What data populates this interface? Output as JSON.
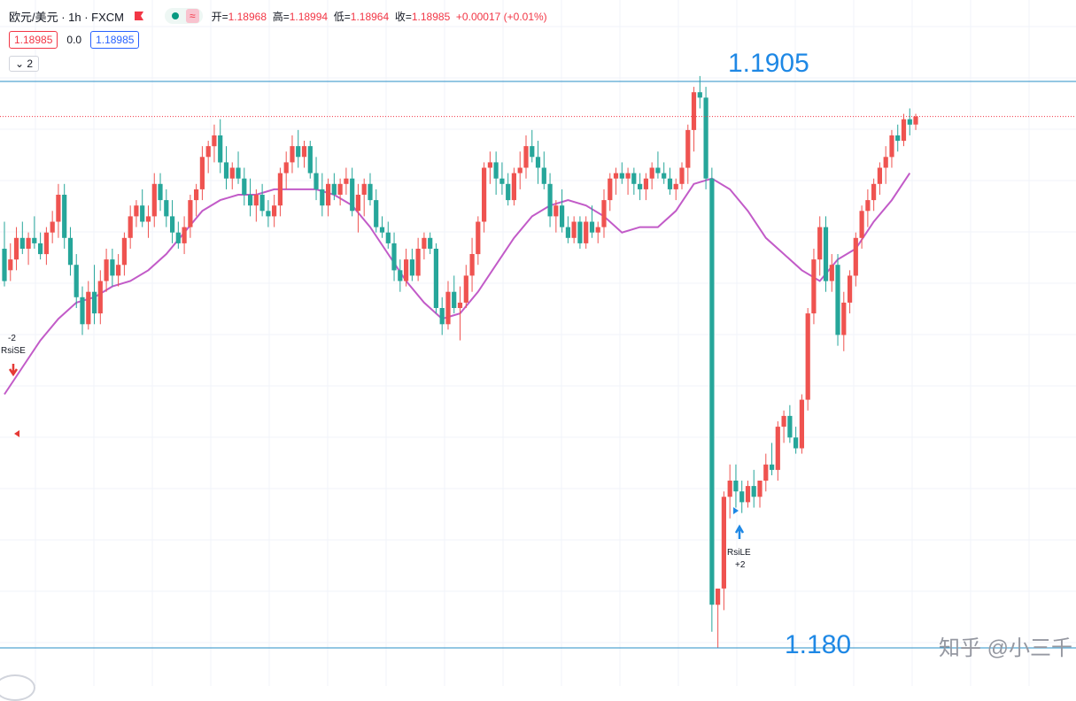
{
  "header": {
    "symbol": "欧元/美元 · 1h · FXCM",
    "open_label": "开=",
    "open": "1.18968",
    "high_label": "高=",
    "high": "1.18994",
    "low_label": "低=",
    "low": "1.18964",
    "close_label": "收=",
    "close": "1.18985",
    "change": "+0.00017 (+0.01%)"
  },
  "prices": {
    "bid": "1.18985",
    "spread": "0.0",
    "ask": "1.18985"
  },
  "indicator_toggle": "2",
  "levels": {
    "upper": "1.1905",
    "lower": "1.180"
  },
  "signals": {
    "short_qty": "-2",
    "short_label": "RsiSE",
    "long_label": "RsiLE",
    "long_qty": "+2"
  },
  "watermark": "知乎 @小三千",
  "colors": {
    "up": "#ef5350",
    "down": "#26a69a",
    "ma": "#c25bc8",
    "level_line": "#2a8fc7",
    "level_text": "#1e88e5"
  },
  "chart_data": {
    "type": "candlestick",
    "symbol": "EURUSD",
    "timeframe": "1h",
    "ylim": [
      1.1795,
      1.1914
    ],
    "horizontal_lines": [
      1.1905,
      1.18
    ],
    "current_price": 1.18985,
    "candles": [
      [
        1.1874,
        1.1879,
        1.1867,
        1.1868
      ],
      [
        1.187,
        1.1875,
        1.1868,
        1.1872
      ],
      [
        1.1872,
        1.1878,
        1.187,
        1.1876
      ],
      [
        1.1876,
        1.1879,
        1.1873,
        1.1874
      ],
      [
        1.1874,
        1.1877,
        1.1871,
        1.1876
      ],
      [
        1.1876,
        1.188,
        1.1874,
        1.1875
      ],
      [
        1.1875,
        1.1877,
        1.1872,
        1.1873
      ],
      [
        1.1873,
        1.1878,
        1.1871,
        1.1877
      ],
      [
        1.1877,
        1.1881,
        1.1875,
        1.1879
      ],
      [
        1.1879,
        1.1886,
        1.1876,
        1.1884
      ],
      [
        1.1884,
        1.1886,
        1.1874,
        1.1876
      ],
      [
        1.1876,
        1.1878,
        1.1869,
        1.1871
      ],
      [
        1.1871,
        1.1873,
        1.1863,
        1.1865
      ],
      [
        1.1865,
        1.1867,
        1.1858,
        1.186
      ],
      [
        1.186,
        1.1868,
        1.1859,
        1.1866
      ],
      [
        1.1866,
        1.1871,
        1.186,
        1.1862
      ],
      [
        1.1862,
        1.187,
        1.186,
        1.1868
      ],
      [
        1.1868,
        1.1874,
        1.1866,
        1.1872
      ],
      [
        1.1872,
        1.1874,
        1.1867,
        1.1869
      ],
      [
        1.1869,
        1.1873,
        1.1867,
        1.1871
      ],
      [
        1.1871,
        1.1877,
        1.1869,
        1.1876
      ],
      [
        1.1876,
        1.1882,
        1.1874,
        1.188
      ],
      [
        1.188,
        1.1883,
        1.1878,
        1.1882
      ],
      [
        1.1882,
        1.1885,
        1.1878,
        1.1879
      ],
      [
        1.1879,
        1.1882,
        1.1876,
        1.188
      ],
      [
        1.188,
        1.1888,
        1.1878,
        1.1886
      ],
      [
        1.1886,
        1.1888,
        1.1881,
        1.1883
      ],
      [
        1.1883,
        1.1885,
        1.1878,
        1.188
      ],
      [
        1.188,
        1.1883,
        1.1875,
        1.1877
      ],
      [
        1.1877,
        1.1879,
        1.1874,
        1.1875
      ],
      [
        1.1875,
        1.188,
        1.1873,
        1.1878
      ],
      [
        1.1878,
        1.1884,
        1.1876,
        1.1883
      ],
      [
        1.1883,
        1.1886,
        1.188,
        1.1885
      ],
      [
        1.1885,
        1.1893,
        1.1883,
        1.1891
      ],
      [
        1.1891,
        1.1894,
        1.1888,
        1.1893
      ],
      [
        1.1893,
        1.1897,
        1.189,
        1.1895
      ],
      [
        1.1895,
        1.1898,
        1.1888,
        1.189
      ],
      [
        1.189,
        1.1893,
        1.1885,
        1.1887
      ],
      [
        1.1887,
        1.189,
        1.1885,
        1.1889
      ],
      [
        1.1889,
        1.1892,
        1.1886,
        1.1887
      ],
      [
        1.1887,
        1.1889,
        1.1882,
        1.1884
      ],
      [
        1.1884,
        1.1887,
        1.188,
        1.1882
      ],
      [
        1.1882,
        1.1885,
        1.1879,
        1.1884
      ],
      [
        1.1884,
        1.1886,
        1.188,
        1.1881
      ],
      [
        1.1881,
        1.1883,
        1.1878,
        1.188
      ],
      [
        1.188,
        1.1884,
        1.1878,
        1.1882
      ],
      [
        1.1882,
        1.1889,
        1.188,
        1.1888
      ],
      [
        1.1888,
        1.1892,
        1.1885,
        1.189
      ],
      [
        1.189,
        1.1895,
        1.1888,
        1.1893
      ],
      [
        1.1893,
        1.1896,
        1.1889,
        1.1891
      ],
      [
        1.1891,
        1.1894,
        1.1889,
        1.1893
      ],
      [
        1.1893,
        1.1894,
        1.1887,
        1.1888
      ],
      [
        1.1888,
        1.1891,
        1.1883,
        1.1885
      ],
      [
        1.1885,
        1.1888,
        1.188,
        1.1882
      ],
      [
        1.1882,
        1.1887,
        1.188,
        1.1886
      ],
      [
        1.1886,
        1.1888,
        1.1883,
        1.1884
      ],
      [
        1.1884,
        1.1887,
        1.1882,
        1.1886
      ],
      [
        1.1886,
        1.1889,
        1.1884,
        1.1887
      ],
      [
        1.1887,
        1.1889,
        1.188,
        1.1881
      ],
      [
        1.1881,
        1.1886,
        1.1877,
        1.1884
      ],
      [
        1.1884,
        1.1887,
        1.188,
        1.1886
      ],
      [
        1.1886,
        1.1888,
        1.1882,
        1.1883
      ],
      [
        1.1883,
        1.1885,
        1.1877,
        1.1878
      ],
      [
        1.1878,
        1.188,
        1.1876,
        1.1877
      ],
      [
        1.1877,
        1.1879,
        1.1874,
        1.1875
      ],
      [
        1.1875,
        1.1877,
        1.1868,
        1.187
      ],
      [
        1.187,
        1.1872,
        1.1866,
        1.1868
      ],
      [
        1.1868,
        1.1874,
        1.1867,
        1.1872
      ],
      [
        1.1872,
        1.1874,
        1.1868,
        1.1869
      ],
      [
        1.1869,
        1.1876,
        1.1868,
        1.1874
      ],
      [
        1.1874,
        1.1877,
        1.1872,
        1.1876
      ],
      [
        1.1876,
        1.1877,
        1.1873,
        1.1874
      ],
      [
        1.1874,
        1.1875,
        1.1862,
        1.1863
      ],
      [
        1.1863,
        1.1865,
        1.1858,
        1.186
      ],
      [
        1.186,
        1.1868,
        1.1859,
        1.1866
      ],
      [
        1.1866,
        1.1869,
        1.1862,
        1.1863
      ],
      [
        1.1863,
        1.1867,
        1.1857,
        1.1864
      ],
      [
        1.1864,
        1.1871,
        1.1863,
        1.1869
      ],
      [
        1.1869,
        1.1876,
        1.1866,
        1.1873
      ],
      [
        1.1873,
        1.188,
        1.1871,
        1.1879
      ],
      [
        1.1879,
        1.189,
        1.1877,
        1.1889
      ],
      [
        1.1889,
        1.1892,
        1.1886,
        1.189
      ],
      [
        1.189,
        1.1892,
        1.1884,
        1.1887
      ],
      [
        1.1887,
        1.189,
        1.1884,
        1.1886
      ],
      [
        1.1886,
        1.1888,
        1.1882,
        1.1883
      ],
      [
        1.1883,
        1.1889,
        1.1882,
        1.1888
      ],
      [
        1.1888,
        1.1892,
        1.1885,
        1.1889
      ],
      [
        1.1889,
        1.1895,
        1.1887,
        1.1893
      ],
      [
        1.1893,
        1.1896,
        1.189,
        1.1891
      ],
      [
        1.1891,
        1.1894,
        1.1886,
        1.1889
      ],
      [
        1.1889,
        1.1892,
        1.1885,
        1.1886
      ],
      [
        1.1886,
        1.1888,
        1.1878,
        1.188
      ],
      [
        1.188,
        1.1883,
        1.1877,
        1.1882
      ],
      [
        1.1882,
        1.1885,
        1.1877,
        1.1878
      ],
      [
        1.1878,
        1.188,
        1.1875,
        1.1876
      ],
      [
        1.1876,
        1.188,
        1.1875,
        1.1879
      ],
      [
        1.1879,
        1.188,
        1.1874,
        1.1875
      ],
      [
        1.1875,
        1.188,
        1.1874,
        1.1879
      ],
      [
        1.1879,
        1.1882,
        1.1876,
        1.1877
      ],
      [
        1.1877,
        1.1879,
        1.1875,
        1.1878
      ],
      [
        1.1878,
        1.1885,
        1.1876,
        1.1883
      ],
      [
        1.1883,
        1.1888,
        1.1881,
        1.1887
      ],
      [
        1.1887,
        1.1889,
        1.1884,
        1.1888
      ],
      [
        1.1888,
        1.189,
        1.1886,
        1.1887
      ],
      [
        1.1887,
        1.1889,
        1.1884,
        1.1888
      ],
      [
        1.1888,
        1.1889,
        1.1884,
        1.1886
      ],
      [
        1.1886,
        1.1888,
        1.1883,
        1.1885
      ],
      [
        1.1885,
        1.1888,
        1.1883,
        1.1887
      ],
      [
        1.1887,
        1.189,
        1.1885,
        1.1889
      ],
      [
        1.1889,
        1.1892,
        1.1887,
        1.1888
      ],
      [
        1.1888,
        1.189,
        1.1886,
        1.1887
      ],
      [
        1.1887,
        1.1889,
        1.1884,
        1.1885
      ],
      [
        1.1885,
        1.1887,
        1.1883,
        1.1886
      ],
      [
        1.1886,
        1.189,
        1.1885,
        1.1889
      ],
      [
        1.1889,
        1.1897,
        1.1886,
        1.1896
      ],
      [
        1.1896,
        1.1904,
        1.1892,
        1.1903
      ],
      [
        1.1903,
        1.1906,
        1.19,
        1.1902
      ],
      [
        1.1902,
        1.1904,
        1.1885,
        1.1887
      ],
      [
        1.1887,
        1.1889,
        1.1803,
        1.1808
      ],
      [
        1.1808,
        1.1811,
        1.18,
        1.1811
      ],
      [
        1.1811,
        1.1829,
        1.1807,
        1.1828
      ],
      [
        1.1828,
        1.1834,
        1.1824,
        1.1831
      ],
      [
        1.1831,
        1.1834,
        1.1826,
        1.1829
      ],
      [
        1.1829,
        1.1831,
        1.1825,
        1.1827
      ],
      [
        1.1827,
        1.1831,
        1.1826,
        1.183
      ],
      [
        1.183,
        1.1833,
        1.1826,
        1.1828
      ],
      [
        1.1828,
        1.1831,
        1.1826,
        1.1831
      ],
      [
        1.1831,
        1.1836,
        1.1829,
        1.1834
      ],
      [
        1.1834,
        1.1838,
        1.1832,
        1.1833
      ],
      [
        1.1833,
        1.1842,
        1.1831,
        1.1841
      ],
      [
        1.1841,
        1.1844,
        1.1838,
        1.1843
      ],
      [
        1.1843,
        1.1845,
        1.1838,
        1.1839
      ],
      [
        1.1839,
        1.1841,
        1.1836,
        1.1837
      ],
      [
        1.1837,
        1.1847,
        1.1836,
        1.1846
      ],
      [
        1.1846,
        1.1863,
        1.1844,
        1.1862
      ],
      [
        1.1862,
        1.1874,
        1.186,
        1.1872
      ],
      [
        1.1872,
        1.188,
        1.1869,
        1.1878
      ],
      [
        1.1878,
        1.188,
        1.1866,
        1.1868
      ],
      [
        1.1868,
        1.1873,
        1.1866,
        1.1871
      ],
      [
        1.1871,
        1.1873,
        1.1856,
        1.1858
      ],
      [
        1.1858,
        1.1866,
        1.1855,
        1.1864
      ],
      [
        1.1864,
        1.187,
        1.1862,
        1.1869
      ],
      [
        1.1869,
        1.1877,
        1.1867,
        1.1876
      ],
      [
        1.1876,
        1.1882,
        1.1874,
        1.1881
      ],
      [
        1.1881,
        1.1885,
        1.1878,
        1.1883
      ],
      [
        1.1883,
        1.1887,
        1.1881,
        1.1886
      ],
      [
        1.1886,
        1.189,
        1.1884,
        1.1889
      ],
      [
        1.1889,
        1.1893,
        1.1886,
        1.1891
      ],
      [
        1.1891,
        1.1896,
        1.1889,
        1.1895
      ],
      [
        1.1895,
        1.1897,
        1.1892,
        1.1894
      ],
      [
        1.1894,
        1.1899,
        1.1893,
        1.1898
      ],
      [
        1.1898,
        1.19,
        1.1895,
        1.1897
      ],
      [
        1.1897,
        1.1899,
        1.1896,
        1.18985
      ]
    ],
    "moving_average": [
      [
        0,
        1.1847
      ],
      [
        3,
        1.1852
      ],
      [
        6,
        1.1857
      ],
      [
        9,
        1.1861
      ],
      [
        12,
        1.1864
      ],
      [
        15,
        1.1865
      ],
      [
        18,
        1.1867
      ],
      [
        21,
        1.1868
      ],
      [
        24,
        1.187
      ],
      [
        27,
        1.1873
      ],
      [
        30,
        1.1877
      ],
      [
        33,
        1.1881
      ],
      [
        36,
        1.1883
      ],
      [
        39,
        1.1884
      ],
      [
        42,
        1.1884
      ],
      [
        45,
        1.1885
      ],
      [
        48,
        1.1885
      ],
      [
        52,
        1.1885
      ],
      [
        55,
        1.1884
      ],
      [
        58,
        1.1882
      ],
      [
        61,
        1.1878
      ],
      [
        64,
        1.1873
      ],
      [
        67,
        1.1868
      ],
      [
        70,
        1.1864
      ],
      [
        73,
        1.1861
      ],
      [
        76,
        1.1862
      ],
      [
        79,
        1.1866
      ],
      [
        82,
        1.1871
      ],
      [
        85,
        1.1876
      ],
      [
        88,
        1.188
      ],
      [
        91,
        1.1882
      ],
      [
        94,
        1.1883
      ],
      [
        97,
        1.1882
      ],
      [
        100,
        1.188
      ],
      [
        103,
        1.1877
      ],
      [
        106,
        1.1878
      ],
      [
        109,
        1.1878
      ],
      [
        112,
        1.1881
      ],
      [
        115,
        1.1886
      ],
      [
        118,
        1.1887
      ],
      [
        121,
        1.1885
      ],
      [
        124,
        1.1881
      ],
      [
        127,
        1.1876
      ],
      [
        130,
        1.1873
      ],
      [
        133,
        1.187
      ],
      [
        136,
        1.1868
      ],
      [
        139,
        1.1872
      ],
      [
        142,
        1.1874
      ],
      [
        145,
        1.1879
      ],
      [
        148,
        1.1883
      ],
      [
        151,
        1.1888
      ]
    ]
  }
}
